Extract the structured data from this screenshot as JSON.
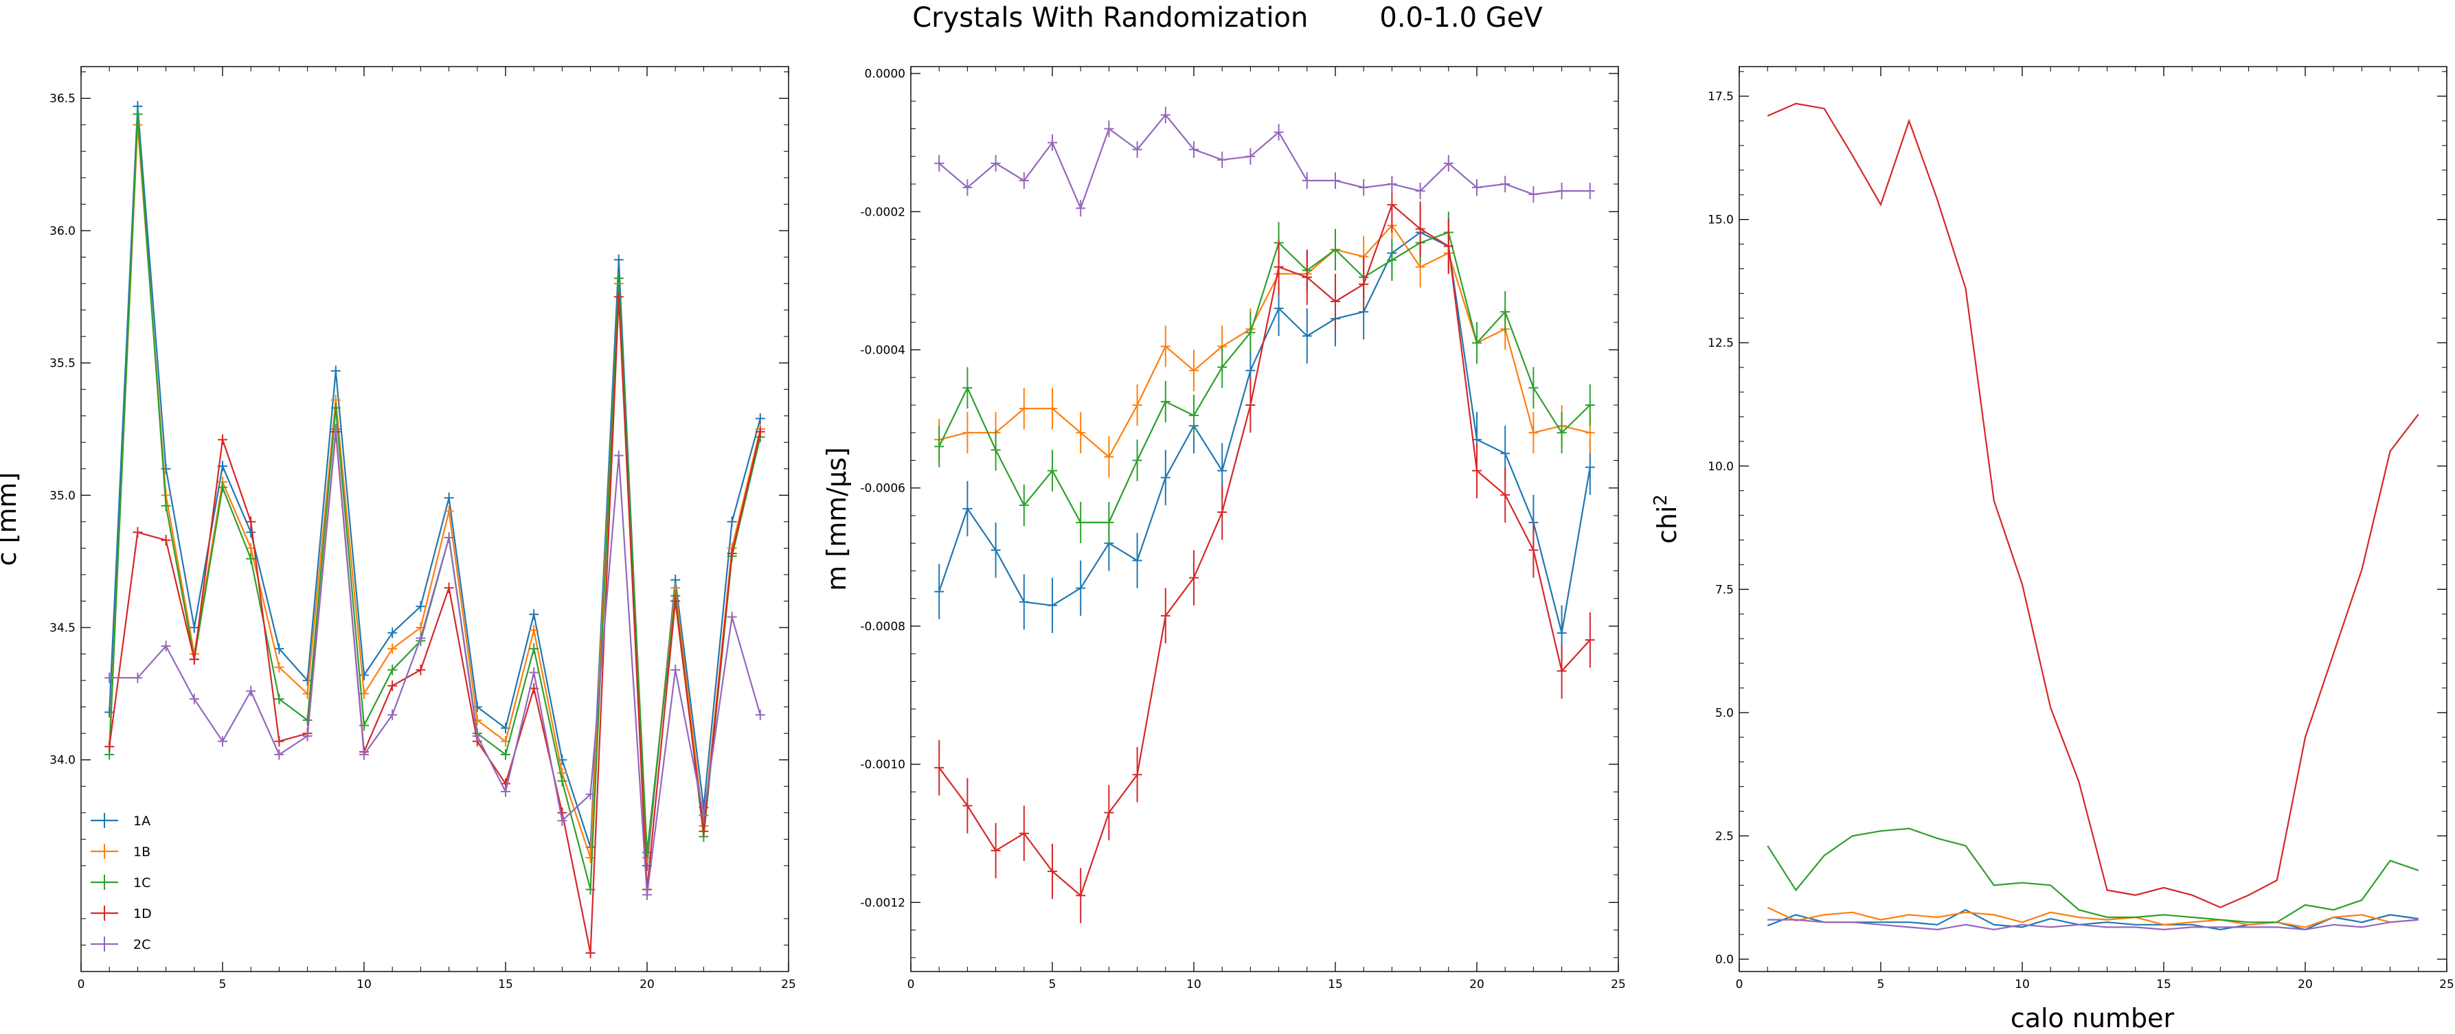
{
  "figure": {
    "title": "Crystals With Randomization",
    "energy_range": "0.0-1.0 GeV",
    "shared_xlabel": "calo number"
  },
  "colors": {
    "1A": "#1f77b4",
    "1B": "#ff7f0e",
    "1C": "#2ca02c",
    "1D": "#d62728",
    "2C": "#9467bd"
  },
  "chart_data": [
    {
      "type": "line",
      "ylabel": "c   [mm]",
      "xlim": [
        0,
        25
      ],
      "ylim": [
        33.2,
        36.62
      ],
      "xticks": [
        0,
        5,
        10,
        15,
        20,
        25
      ],
      "yticks": [
        34.0,
        34.5,
        35.0,
        35.5,
        36.0,
        36.5
      ],
      "ytick_decimals": 1,
      "legend": "lower-left",
      "error_bars": true,
      "x": [
        1,
        2,
        3,
        4,
        5,
        6,
        7,
        8,
        9,
        10,
        11,
        12,
        13,
        14,
        15,
        16,
        17,
        18,
        19,
        20,
        21,
        22,
        23,
        24
      ],
      "series": [
        {
          "name": "1A",
          "values": [
            34.18,
            36.47,
            35.1,
            34.5,
            35.11,
            34.86,
            34.42,
            34.3,
            35.47,
            34.32,
            34.48,
            34.58,
            34.99,
            34.2,
            34.12,
            34.55,
            34.0,
            33.67,
            35.89,
            33.6,
            34.68,
            33.82,
            34.9,
            35.29
          ],
          "errors": [
            0.02,
            0.02,
            0.02,
            0.02,
            0.02,
            0.02,
            0.02,
            0.02,
            0.02,
            0.02,
            0.02,
            0.02,
            0.02,
            0.02,
            0.02,
            0.02,
            0.02,
            0.02,
            0.02,
            0.02,
            0.02,
            0.02,
            0.02,
            0.02
          ]
        },
        {
          "name": "1B",
          "values": [
            34.05,
            36.4,
            35.0,
            34.4,
            35.05,
            34.8,
            34.35,
            34.25,
            35.36,
            34.25,
            34.42,
            34.5,
            34.94,
            34.15,
            34.07,
            34.49,
            33.95,
            33.63,
            35.8,
            33.63,
            34.65,
            33.75,
            34.8,
            35.25
          ],
          "errors": [
            0.02,
            0.02,
            0.02,
            0.02,
            0.02,
            0.02,
            0.02,
            0.02,
            0.02,
            0.02,
            0.02,
            0.02,
            0.02,
            0.02,
            0.02,
            0.02,
            0.02,
            0.02,
            0.02,
            0.02,
            0.02,
            0.02,
            0.02,
            0.02
          ]
        },
        {
          "name": "1C",
          "values": [
            34.02,
            36.44,
            34.96,
            34.38,
            35.03,
            34.76,
            34.23,
            34.15,
            35.33,
            34.13,
            34.34,
            34.45,
            34.84,
            34.1,
            34.02,
            34.42,
            33.92,
            33.51,
            35.82,
            33.65,
            34.62,
            33.71,
            34.77,
            35.22
          ],
          "errors": [
            0.02,
            0.02,
            0.02,
            0.02,
            0.02,
            0.02,
            0.02,
            0.02,
            0.02,
            0.02,
            0.02,
            0.02,
            0.02,
            0.02,
            0.02,
            0.02,
            0.02,
            0.02,
            0.02,
            0.02,
            0.02,
            0.02,
            0.02,
            0.02
          ]
        },
        {
          "name": "1D",
          "values": [
            34.05,
            34.86,
            34.83,
            34.38,
            35.21,
            34.9,
            34.07,
            34.1,
            35.24,
            34.03,
            34.28,
            34.34,
            34.65,
            34.07,
            33.91,
            34.27,
            33.8,
            33.27,
            35.75,
            33.51,
            34.6,
            33.73,
            34.78,
            35.24
          ],
          "errors": [
            0.02,
            0.02,
            0.02,
            0.02,
            0.02,
            0.02,
            0.02,
            0.02,
            0.02,
            0.02,
            0.02,
            0.02,
            0.02,
            0.02,
            0.02,
            0.02,
            0.02,
            0.02,
            0.02,
            0.02,
            0.02,
            0.02,
            0.02,
            0.02
          ]
        },
        {
          "name": "2C",
          "values": [
            34.31,
            34.31,
            34.43,
            34.23,
            34.07,
            34.26,
            34.02,
            34.09,
            35.25,
            34.02,
            34.17,
            34.46,
            34.84,
            34.09,
            33.88,
            34.33,
            33.77,
            33.87,
            35.15,
            33.49,
            34.34,
            33.79,
            34.54,
            34.17
          ],
          "errors": [
            0.02,
            0.02,
            0.02,
            0.02,
            0.02,
            0.02,
            0.02,
            0.02,
            0.02,
            0.02,
            0.02,
            0.02,
            0.02,
            0.02,
            0.02,
            0.02,
            0.02,
            0.02,
            0.02,
            0.02,
            0.02,
            0.02,
            0.02,
            0.02
          ]
        }
      ]
    },
    {
      "type": "line",
      "ylabel": "m   [mm/μs]",
      "xlim": [
        0,
        25
      ],
      "ylim": [
        -0.0013,
        1e-05
      ],
      "xticks": [
        0,
        5,
        10,
        15,
        20,
        25
      ],
      "yticks": [
        -0.0012,
        -0.001,
        -0.0008,
        -0.0006,
        -0.0004,
        -0.0002,
        0.0
      ],
      "ytick_decimals": 4,
      "legend": "none",
      "error_bars": true,
      "x": [
        1,
        2,
        3,
        4,
        5,
        6,
        7,
        8,
        9,
        10,
        11,
        12,
        13,
        14,
        15,
        16,
        17,
        18,
        19,
        20,
        21,
        22,
        23,
        24
      ],
      "series": [
        {
          "name": "1A",
          "values": [
            -0.00075,
            -0.00063,
            -0.00069,
            -0.000765,
            -0.00077,
            -0.000745,
            -0.00068,
            -0.000705,
            -0.000585,
            -0.00051,
            -0.000575,
            -0.00043,
            -0.00034,
            -0.00038,
            -0.000355,
            -0.000345,
            -0.00026,
            -0.00023,
            -0.00025,
            -0.00053,
            -0.00055,
            -0.00065,
            -0.00081,
            -0.00057
          ],
          "errors": [
            4e-05,
            4e-05,
            4e-05,
            4e-05,
            4e-05,
            4e-05,
            4e-05,
            4e-05,
            4e-05,
            4e-05,
            4e-05,
            4e-05,
            4e-05,
            4e-05,
            4e-05,
            4e-05,
            4e-05,
            4e-05,
            4e-05,
            4e-05,
            4e-05,
            4e-05,
            4e-05,
            4e-05
          ]
        },
        {
          "name": "1B",
          "values": [
            -0.00053,
            -0.00052,
            -0.00052,
            -0.000485,
            -0.000485,
            -0.00052,
            -0.000555,
            -0.00048,
            -0.000395,
            -0.00043,
            -0.000395,
            -0.00037,
            -0.00029,
            -0.00029,
            -0.000255,
            -0.000265,
            -0.00022,
            -0.00028,
            -0.00026,
            -0.00039,
            -0.00037,
            -0.00052,
            -0.00051,
            -0.00052
          ],
          "errors": [
            3e-05,
            3e-05,
            3e-05,
            3e-05,
            3e-05,
            3e-05,
            3e-05,
            3e-05,
            3e-05,
            3e-05,
            3e-05,
            3e-05,
            3e-05,
            3e-05,
            3e-05,
            3e-05,
            3e-05,
            3e-05,
            3e-05,
            3e-05,
            3e-05,
            3e-05,
            3e-05,
            3e-05
          ]
        },
        {
          "name": "1C",
          "values": [
            -0.00054,
            -0.000455,
            -0.000545,
            -0.000625,
            -0.000575,
            -0.00065,
            -0.00065,
            -0.00056,
            -0.000475,
            -0.000495,
            -0.000425,
            -0.000375,
            -0.000245,
            -0.000285,
            -0.000255,
            -0.000295,
            -0.00027,
            -0.000245,
            -0.00023,
            -0.00039,
            -0.000345,
            -0.000455,
            -0.00052,
            -0.00048
          ],
          "errors": [
            3e-05,
            3e-05,
            3e-05,
            3e-05,
            3e-05,
            3e-05,
            3e-05,
            3e-05,
            3e-05,
            3e-05,
            3e-05,
            3e-05,
            3e-05,
            3e-05,
            3e-05,
            3e-05,
            3e-05,
            3e-05,
            3e-05,
            3e-05,
            3e-05,
            3e-05,
            3e-05,
            3e-05
          ]
        },
        {
          "name": "1D",
          "values": [
            -0.001005,
            -0.00106,
            -0.001125,
            -0.0011,
            -0.001155,
            -0.00119,
            -0.00107,
            -0.001015,
            -0.000785,
            -0.00073,
            -0.000635,
            -0.00048,
            -0.00028,
            -0.000295,
            -0.00033,
            -0.000305,
            -0.00019,
            -0.000225,
            -0.00025,
            -0.000575,
            -0.00061,
            -0.00069,
            -0.000865,
            -0.00082
          ],
          "errors": [
            4e-05,
            4e-05,
            4e-05,
            4e-05,
            4e-05,
            4e-05,
            4e-05,
            4e-05,
            4e-05,
            4e-05,
            4e-05,
            4e-05,
            4e-05,
            4e-05,
            4e-05,
            4e-05,
            4e-05,
            4e-05,
            4e-05,
            4e-05,
            4e-05,
            4e-05,
            4e-05,
            4e-05
          ]
        },
        {
          "name": "2C",
          "values": [
            -0.00013,
            -0.000165,
            -0.00013,
            -0.000155,
            -0.0001,
            -0.000195,
            -8e-05,
            -0.00011,
            -6e-05,
            -0.00011,
            -0.000125,
            -0.00012,
            -8.5e-05,
            -0.000155,
            -0.000155,
            -0.000165,
            -0.00016,
            -0.00017,
            -0.00013,
            -0.000165,
            -0.00016,
            -0.000175,
            -0.00017,
            -0.00017
          ],
          "errors": [
            1.2e-05,
            1.2e-05,
            1.2e-05,
            1.2e-05,
            1.2e-05,
            1.2e-05,
            1.2e-05,
            1.2e-05,
            1.2e-05,
            1.2e-05,
            1.2e-05,
            1.2e-05,
            1.2e-05,
            1.2e-05,
            1.2e-05,
            1.2e-05,
            1.2e-05,
            1.2e-05,
            1.2e-05,
            1.2e-05,
            1.2e-05,
            1.2e-05,
            1.2e-05,
            1.2e-05
          ]
        }
      ]
    },
    {
      "type": "line",
      "ylabel": "chi",
      "ylabel_sup": "2",
      "xlim": [
        0,
        25
      ],
      "ylim": [
        -0.25,
        18.1
      ],
      "xticks": [
        0,
        5,
        10,
        15,
        20,
        25
      ],
      "yticks": [
        0.0,
        2.5,
        5.0,
        7.5,
        10.0,
        12.5,
        15.0,
        17.5
      ],
      "ytick_decimals": 1,
      "legend": "none",
      "error_bars": false,
      "x": [
        1,
        2,
        3,
        4,
        5,
        6,
        7,
        8,
        9,
        10,
        11,
        12,
        13,
        14,
        15,
        16,
        17,
        18,
        19,
        20,
        21,
        22,
        23,
        24
      ],
      "series": [
        {
          "name": "1A",
          "values": [
            0.68,
            0.9,
            0.75,
            0.75,
            0.75,
            0.75,
            0.7,
            1.0,
            0.7,
            0.65,
            0.82,
            0.7,
            0.75,
            0.7,
            0.7,
            0.7,
            0.6,
            0.7,
            0.75,
            0.6,
            0.85,
            0.75,
            0.9,
            0.82
          ]
        },
        {
          "name": "1B",
          "values": [
            1.05,
            0.78,
            0.9,
            0.95,
            0.8,
            0.9,
            0.85,
            0.95,
            0.9,
            0.75,
            0.95,
            0.85,
            0.8,
            0.85,
            0.7,
            0.75,
            0.8,
            0.7,
            0.75,
            0.65,
            0.85,
            0.9,
            0.75,
            0.8
          ]
        },
        {
          "name": "1C",
          "values": [
            2.3,
            1.4,
            2.1,
            2.5,
            2.6,
            2.65,
            2.45,
            2.3,
            1.5,
            1.55,
            1.5,
            1.0,
            0.85,
            0.85,
            0.9,
            0.85,
            0.8,
            0.75,
            0.75,
            1.1,
            1.0,
            1.2,
            2.0,
            1.8
          ]
        },
        {
          "name": "1D",
          "values": [
            17.1,
            17.35,
            17.25,
            16.3,
            15.3,
            17.0,
            15.4,
            13.6,
            9.3,
            7.6,
            5.1,
            3.6,
            1.4,
            1.3,
            1.45,
            1.3,
            1.05,
            1.3,
            1.6,
            4.5,
            6.2,
            7.9,
            10.3,
            11.05
          ]
        },
        {
          "name": "2C",
          "values": [
            0.8,
            0.8,
            0.75,
            0.75,
            0.7,
            0.65,
            0.6,
            0.7,
            0.6,
            0.7,
            0.65,
            0.7,
            0.65,
            0.65,
            0.6,
            0.65,
            0.65,
            0.65,
            0.65,
            0.6,
            0.7,
            0.65,
            0.75,
            0.8
          ]
        }
      ]
    }
  ]
}
